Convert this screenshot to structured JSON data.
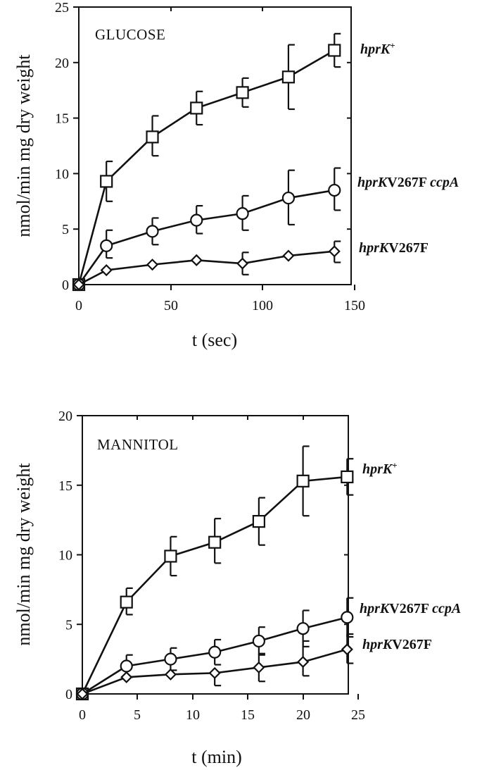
{
  "chart_data": [
    {
      "type": "line",
      "title": "GLUCOSE",
      "xlabel": "t (sec)",
      "ylabel": "nmol/min mg dry weight",
      "xlim": [
        0,
        150
      ],
      "ylim": [
        0,
        25
      ],
      "xticks": [
        "0",
        "50",
        "100",
        "150"
      ],
      "yticks": [
        "0",
        "5",
        "10",
        "15",
        "20",
        "25"
      ],
      "series": [
        {
          "name_parts": [
            {
              "text": "hprK",
              "italic": true
            },
            {
              "text": "+",
              "sup": true
            }
          ],
          "marker": "square",
          "x": [
            0,
            15,
            40,
            64,
            89,
            114,
            139
          ],
          "y": [
            0,
            9.3,
            13.3,
            15.9,
            17.3,
            18.7,
            21.1
          ],
          "err_upper": [
            0,
            11.1,
            15.2,
            17.4,
            18.6,
            21.6,
            22.6
          ],
          "err_lower": [
            0,
            7.5,
            11.6,
            14.4,
            16.0,
            15.8,
            19.6
          ]
        },
        {
          "name_parts": [
            {
              "text": "hprK",
              "italic": true
            },
            {
              "text": "V267F ",
              "italic": false
            },
            {
              "text": "ccpA",
              "italic": true
            }
          ],
          "marker": "circle",
          "x": [
            0,
            15,
            40,
            64,
            89,
            114,
            139
          ],
          "y": [
            0,
            3.5,
            4.8,
            5.8,
            6.4,
            7.8,
            8.5
          ],
          "err_upper": [
            0,
            4.9,
            6.0,
            7.1,
            8.0,
            10.3,
            10.5
          ],
          "err_lower": [
            0,
            2.4,
            3.6,
            4.6,
            4.9,
            5.4,
            6.7
          ]
        },
        {
          "name_parts": [
            {
              "text": "hprK",
              "italic": true
            },
            {
              "text": "V267F",
              "italic": false
            }
          ],
          "marker": "diamond",
          "x": [
            0,
            15,
            40,
            64,
            89,
            114,
            139
          ],
          "y": [
            0,
            1.3,
            1.8,
            2.2,
            1.9,
            2.6,
            3.0
          ],
          "err_upper": [
            0,
            1.3,
            1.8,
            2.2,
            2.9,
            2.6,
            3.9
          ],
          "err_lower": [
            0,
            1.3,
            1.8,
            2.2,
            0.9,
            2.6,
            2.0
          ]
        }
      ]
    },
    {
      "type": "line",
      "title": "MANNITOL",
      "xlabel": "t (min)",
      "ylabel": "nmol/min mg dry weight",
      "xlim": [
        0,
        25
      ],
      "ylim": [
        0,
        20
      ],
      "xticks": [
        "0",
        "5",
        "10",
        "15",
        "20",
        "25"
      ],
      "yticks": [
        "0",
        "5",
        "10",
        "15",
        "20"
      ],
      "series": [
        {
          "name_parts": [
            {
              "text": "hprK",
              "italic": true
            },
            {
              "text": "+",
              "sup": true
            }
          ],
          "marker": "square",
          "x": [
            0,
            4,
            8,
            12,
            16,
            20,
            24
          ],
          "y": [
            0,
            6.6,
            9.9,
            10.9,
            12.4,
            15.3,
            15.6
          ],
          "err_upper": [
            0,
            7.6,
            11.3,
            12.6,
            14.1,
            17.8,
            16.9
          ],
          "err_lower": [
            0,
            5.7,
            8.5,
            9.4,
            10.7,
            12.8,
            14.3
          ]
        },
        {
          "name_parts": [
            {
              "text": "hprK",
              "italic": true
            },
            {
              "text": "V267F ",
              "italic": false
            },
            {
              "text": "ccpA",
              "italic": true
            }
          ],
          "marker": "circle",
          "x": [
            0,
            4,
            8,
            12,
            16,
            20,
            24
          ],
          "y": [
            0,
            2.0,
            2.5,
            3.0,
            3.8,
            4.7,
            5.5
          ],
          "err_upper": [
            0,
            2.8,
            3.3,
            3.9,
            4.8,
            6.0,
            6.9
          ],
          "err_lower": [
            0,
            1.2,
            1.7,
            2.1,
            2.8,
            3.4,
            4.1
          ]
        },
        {
          "name_parts": [
            {
              "text": "hprK",
              "italic": true
            },
            {
              "text": "V267F",
              "italic": false
            }
          ],
          "marker": "diamond",
          "x": [
            0,
            4,
            8,
            12,
            16,
            20,
            24
          ],
          "y": [
            0,
            1.2,
            1.4,
            1.5,
            1.9,
            2.3,
            3.2
          ],
          "err_upper": [
            0,
            1.2,
            1.4,
            1.5,
            2.9,
            3.8,
            4.3
          ],
          "err_lower": [
            0,
            1.2,
            1.4,
            0.6,
            0.9,
            1.3,
            2.2
          ]
        }
      ]
    }
  ]
}
